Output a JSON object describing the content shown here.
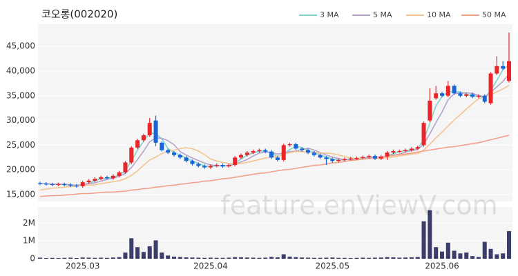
{
  "chart_data": [
    {
      "type": "candlestick",
      "title": "코오롱(002020)",
      "open": [
        17300,
        17200,
        17100,
        17000,
        17100,
        17000,
        16800,
        16700,
        17500,
        17800,
        18200,
        18500,
        18300,
        18800,
        19500,
        21500,
        24500,
        26000,
        27000,
        30000,
        25500,
        24000,
        23500,
        23000,
        22500,
        21800,
        21200,
        20800,
        20500,
        20800,
        21000,
        20700,
        21000,
        22500,
        23000,
        23500,
        23800,
        24000,
        23700,
        22500,
        22000,
        25000,
        25200,
        24300,
        24000,
        23500,
        23000,
        22500,
        22200,
        21800,
        22000,
        22200,
        22300,
        22400,
        22600,
        22800,
        22300,
        22700,
        23500,
        23800,
        23800,
        24000,
        24300,
        25000,
        30000,
        34500,
        35500,
        35000,
        37000,
        35500,
        35000,
        35300,
        34800,
        35000,
        33500,
        39500,
        41000,
        38000
      ],
      "high": [
        17600,
        17500,
        17400,
        17400,
        17400,
        17300,
        17100,
        17800,
        18100,
        18500,
        18800,
        18800,
        19100,
        19800,
        21800,
        24800,
        26300,
        27300,
        30500,
        31000,
        25800,
        24300,
        23800,
        23300,
        22800,
        22100,
        21500,
        21100,
        21100,
        21300,
        21300,
        21300,
        22800,
        23300,
        23800,
        24100,
        24300,
        24300,
        24000,
        22800,
        25300,
        25500,
        25500,
        24600,
        24300,
        23800,
        23300,
        22800,
        22500,
        22300,
        22500,
        22600,
        22700,
        22900,
        23100,
        23100,
        23000,
        23800,
        24100,
        24100,
        24300,
        24600,
        24900,
        29800,
        36500,
        37000,
        35800,
        38000,
        37300,
        35800,
        35600,
        35600,
        35300,
        35300,
        39800,
        43000,
        42000,
        47800
      ],
      "low": [
        16900,
        16800,
        16700,
        16700,
        16700,
        16500,
        16400,
        16400,
        17200,
        17500,
        17900,
        18000,
        18000,
        18500,
        19200,
        21200,
        24200,
        25700,
        26700,
        24800,
        23700,
        23200,
        22700,
        22200,
        21500,
        20900,
        20500,
        20200,
        20200,
        20500,
        20400,
        20400,
        20700,
        22200,
        22700,
        23200,
        23500,
        23400,
        22200,
        21700,
        21700,
        24700,
        24000,
        23700,
        23200,
        22700,
        22200,
        21000,
        21500,
        21500,
        21700,
        21900,
        22000,
        22100,
        22300,
        22000,
        22000,
        22000,
        23200,
        23500,
        23500,
        23700,
        24000,
        24700,
        29700,
        34200,
        34700,
        34700,
        35200,
        34700,
        34700,
        34500,
        34500,
        33500,
        33200,
        39200,
        40200,
        37700
      ],
      "close": [
        17200,
        17100,
        17000,
        17100,
        17000,
        16800,
        16700,
        17500,
        17800,
        18200,
        18500,
        18300,
        18800,
        19500,
        21500,
        24500,
        26000,
        27000,
        29500,
        25500,
        24000,
        23500,
        23000,
        22500,
        21800,
        21200,
        20800,
        20500,
        20800,
        21000,
        20700,
        21000,
        22500,
        23000,
        23500,
        23800,
        24000,
        23700,
        22500,
        22000,
        25000,
        25200,
        24300,
        24000,
        23500,
        23000,
        22500,
        22200,
        21800,
        22000,
        22200,
        22300,
        22400,
        22600,
        22800,
        22300,
        22700,
        23500,
        23800,
        23800,
        24000,
        24300,
        24600,
        29500,
        34000,
        35500,
        35000,
        37000,
        35500,
        35000,
        35300,
        34800,
        35000,
        33800,
        39500,
        41000,
        40500,
        42000
      ],
      "up_color": "#e8262a",
      "down_color": "#1565d8",
      "ylim": [
        13600,
        49500
      ],
      "yticks": [
        {
          "value": 15000,
          "label": "15,000"
        },
        {
          "value": 20000,
          "label": "20,000"
        },
        {
          "value": 25000,
          "label": "25,000"
        },
        {
          "value": 30000,
          "label": "30,000"
        },
        {
          "value": 35000,
          "label": "35,000"
        },
        {
          "value": 40000,
          "label": "40,000"
        },
        {
          "value": 45000,
          "label": "45,000"
        }
      ],
      "grid": true,
      "legend": "top-right",
      "series": [
        {
          "name": "3 MA",
          "color": "#7dd3cb",
          "values": [
            17200,
            17200,
            17100,
            17100,
            17000,
            17000,
            16800,
            17000,
            17300,
            17800,
            18200,
            18300,
            18500,
            18900,
            19900,
            21800,
            24000,
            25800,
            27500,
            27300,
            26300,
            24300,
            23500,
            23000,
            22400,
            21800,
            21300,
            20800,
            20700,
            20800,
            20800,
            20900,
            21400,
            22200,
            23000,
            23400,
            23800,
            23800,
            23400,
            22700,
            23200,
            24100,
            24800,
            24500,
            23900,
            23500,
            23000,
            22600,
            22200,
            22000,
            22000,
            22200,
            22300,
            22400,
            22600,
            22600,
            22600,
            22800,
            23300,
            23700,
            23900,
            24000,
            24300,
            26100,
            29400,
            33000,
            34800,
            35800,
            35800,
            35800,
            35300,
            35000,
            35000,
            34500,
            36100,
            38100,
            40300,
            41200
          ]
        },
        {
          "name": "5 MA",
          "color": "#b5a2cb",
          "values": [
            17200,
            17200,
            17100,
            17100,
            17100,
            17000,
            16900,
            17000,
            17200,
            17400,
            17700,
            18100,
            18300,
            18700,
            19300,
            20500,
            22100,
            23800,
            25700,
            26500,
            26400,
            25900,
            25100,
            23700,
            23000,
            22400,
            21900,
            21400,
            21000,
            20900,
            20800,
            20800,
            21200,
            21600,
            22100,
            22800,
            23400,
            23600,
            23500,
            23200,
            23400,
            23700,
            23800,
            24100,
            24400,
            24000,
            23500,
            23000,
            22600,
            22300,
            22100,
            22100,
            22100,
            22300,
            22500,
            22500,
            22600,
            22800,
            23000,
            23200,
            23600,
            23900,
            24100,
            25200,
            27300,
            29600,
            31700,
            34200,
            35400,
            35600,
            35600,
            35500,
            35100,
            34800,
            35700,
            36800,
            37900,
            39400
          ]
        },
        {
          "name": "10 MA",
          "color": "#f4c48e",
          "values": [
            15900,
            16100,
            16300,
            16400,
            16500,
            16600,
            16700,
            16800,
            16900,
            17000,
            17200,
            17400,
            17600,
            17800,
            18200,
            18900,
            19800,
            20900,
            22000,
            22600,
            23300,
            23800,
            24000,
            24300,
            24500,
            24300,
            23800,
            23100,
            22200,
            21800,
            21500,
            21300,
            21200,
            21300,
            21500,
            21800,
            22100,
            22400,
            22600,
            22700,
            23100,
            23500,
            23700,
            23700,
            23600,
            23500,
            23400,
            23400,
            23300,
            23000,
            22700,
            22400,
            22300,
            22200,
            22300,
            22300,
            22300,
            22500,
            22600,
            22800,
            23000,
            23200,
            23300,
            24000,
            25200,
            26500,
            27600,
            28900,
            30100,
            31200,
            32300,
            33400,
            34400,
            34800,
            35200,
            35800,
            36400,
            37100
          ]
        },
        {
          "name": "50 MA",
          "color": "#f3a08b",
          "values": [
            14600,
            14700,
            14800,
            14800,
            14900,
            15000,
            15100,
            15200,
            15200,
            15300,
            15400,
            15500,
            15500,
            15600,
            15700,
            15900,
            16000,
            16200,
            16300,
            16500,
            16600,
            16800,
            16900,
            17100,
            17200,
            17400,
            17500,
            17700,
            17800,
            18000,
            18200,
            18300,
            18500,
            18700,
            18900,
            19100,
            19300,
            19400,
            19600,
            19800,
            20000,
            20100,
            20300,
            20500,
            20700,
            20900,
            21000,
            21200,
            21400,
            21500,
            21700,
            21900,
            22000,
            22200,
            22300,
            22500,
            22600,
            22800,
            22900,
            23100,
            23200,
            23400,
            23600,
            23800,
            24000,
            24200,
            24400,
            24600,
            24700,
            24900,
            25100,
            25300,
            25500,
            25800,
            26100,
            26400,
            26700,
            27000
          ]
        }
      ]
    },
    {
      "type": "bar",
      "categories": [
        null,
        null,
        null,
        null,
        null,
        null,
        null,
        "2025.03",
        null,
        null,
        null,
        null,
        null,
        null,
        null,
        null,
        null,
        null,
        null,
        null,
        null,
        null,
        null,
        null,
        null,
        null,
        null,
        null,
        "2025.04",
        null,
        null,
        null,
        null,
        null,
        null,
        null,
        null,
        null,
        null,
        null,
        null,
        null,
        null,
        null,
        null,
        null,
        null,
        null,
        "2025.05",
        null,
        null,
        null,
        null,
        null,
        null,
        null,
        null,
        null,
        null,
        null,
        null,
        null,
        null,
        null,
        null,
        null,
        "2025.06",
        null,
        null,
        null,
        null,
        null,
        null,
        null,
        null,
        null,
        null,
        null
      ],
      "values": [
        60000,
        40000,
        50000,
        40000,
        50000,
        60000,
        40000,
        70000,
        60000,
        50000,
        60000,
        50000,
        70000,
        90000,
        350000,
        1150000,
        650000,
        380000,
        700000,
        1030000,
        350000,
        180000,
        120000,
        100000,
        80000,
        70000,
        60000,
        50000,
        60000,
        50000,
        50000,
        60000,
        90000,
        80000,
        70000,
        60000,
        50000,
        60000,
        100000,
        80000,
        250000,
        120000,
        90000,
        70000,
        60000,
        50000,
        50000,
        60000,
        70000,
        50000,
        50000,
        40000,
        50000,
        60000,
        50000,
        60000,
        70000,
        90000,
        80000,
        60000,
        70000,
        80000,
        100000,
        2100000,
        2720000,
        650000,
        400000,
        900000,
        450000,
        300000,
        350000,
        150000,
        100000,
        950000,
        550000,
        250000,
        300000,
        1550000
      ],
      "color": "#3b3d6a",
      "ylim": [
        0,
        2900000
      ],
      "yticks": [
        0,
        {
          "value": 1000000,
          "label": "1M"
        },
        {
          "value": 2000000,
          "label": "2M"
        }
      ],
      "grid": true
    },
    {
      "watermark": "feature.enViewV.com"
    }
  ]
}
